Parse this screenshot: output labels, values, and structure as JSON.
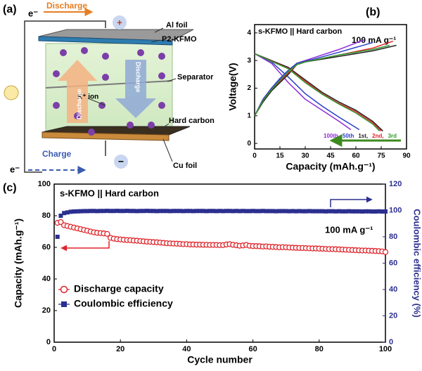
{
  "diagram": {
    "panel": "(a)",
    "electron_top": "e⁻",
    "discharge": "Discharge",
    "plus": "+",
    "al_foil": "Al foil",
    "cathode": "P2-KFMO",
    "separator": "Separator",
    "ion": "K⁺ ion",
    "arrow_up": "Discharge",
    "arrow_down": "Discharge",
    "anode": "Hard carbon",
    "charge": "Charge",
    "minus": "−",
    "cu_foil": "Cu foil",
    "electron_bottom": "e⁻"
  },
  "chart_data": [
    {
      "type": "line",
      "panel": "(b)",
      "title": "s-KFMO || Hard carbon",
      "annotation": "100 mA g⁻¹",
      "x_label": "Capacity (mAh.g⁻¹)",
      "y_label": "Voltage(V)",
      "xlim": [
        0,
        90
      ],
      "xticks": [
        0,
        15,
        30,
        45,
        60,
        75,
        90
      ],
      "ylim": [
        -0.2,
        4.3
      ],
      "yticks": [
        0,
        1,
        2,
        3,
        4
      ],
      "legend": "lower right",
      "series": [
        {
          "name": "100th",
          "color": "#8e2bd6",
          "x": [
            0,
            5,
            10,
            15,
            20,
            25,
            35,
            50,
            65,
            null,
            0,
            10,
            20,
            30,
            40,
            50,
            57
          ],
          "values": [
            1.0,
            1.6,
            2.0,
            2.3,
            2.6,
            2.9,
            3.1,
            3.4,
            3.75,
            null,
            3.25,
            2.9,
            2.2,
            1.6,
            1.2,
            0.8,
            0.5
          ]
        },
        {
          "name": "50th",
          "color": "#2a3fc9",
          "x": [
            0,
            5,
            10,
            15,
            20,
            25,
            35,
            50,
            70,
            null,
            0,
            10,
            20,
            30,
            40,
            50,
            62
          ],
          "values": [
            1.0,
            1.6,
            2.0,
            2.35,
            2.65,
            2.9,
            3.05,
            3.3,
            3.65,
            null,
            3.25,
            2.95,
            2.4,
            1.8,
            1.35,
            0.95,
            0.5
          ]
        },
        {
          "name": "1st,",
          "color": "#222222",
          "x": [
            0,
            5,
            10,
            20,
            25,
            30,
            50,
            70,
            84,
            null,
            0,
            10,
            20,
            30,
            40,
            50,
            60,
            70,
            76
          ],
          "values": [
            1.0,
            1.5,
            1.9,
            2.5,
            2.85,
            2.95,
            3.15,
            3.35,
            3.55,
            null,
            3.25,
            3.0,
            2.75,
            2.3,
            1.85,
            1.5,
            1.2,
            0.8,
            0.45
          ]
        },
        {
          "name": "2nd,",
          "color": "#e0242a",
          "x": [
            0,
            5,
            10,
            20,
            25,
            30,
            50,
            70,
            82,
            null,
            0,
            10,
            20,
            30,
            40,
            50,
            60,
            70,
            75
          ],
          "values": [
            1.0,
            1.55,
            1.95,
            2.55,
            2.85,
            2.95,
            3.2,
            3.45,
            3.7,
            null,
            3.25,
            2.98,
            2.72,
            2.25,
            1.8,
            1.45,
            1.15,
            0.75,
            0.45
          ]
        },
        {
          "name": "3rd",
          "color": "#2f9a2f",
          "x": [
            0,
            5,
            10,
            20,
            25,
            30,
            50,
            70,
            80,
            null,
            0,
            10,
            20,
            30,
            40,
            50,
            60,
            70,
            74
          ],
          "values": [
            1.0,
            1.55,
            1.95,
            2.6,
            2.85,
            2.95,
            3.2,
            3.4,
            3.55,
            null,
            3.25,
            2.97,
            2.7,
            2.2,
            1.78,
            1.42,
            1.1,
            0.7,
            0.45
          ]
        }
      ]
    },
    {
      "type": "scatter",
      "panel": "(c)",
      "title": "s-KFMO || Hard carbon",
      "annotation": "100 mA g⁻¹",
      "x_label": "Cycle number",
      "y_label": "Capacity (mAh.g⁻¹)",
      "y2_label": "Coulombic efficiency (%)",
      "xlim": [
        0,
        100
      ],
      "xticks": [
        0,
        20,
        40,
        60,
        80,
        100
      ],
      "ylim": [
        0,
        100
      ],
      "yticks": [
        0,
        20,
        40,
        60,
        80,
        100
      ],
      "y2lim": [
        0,
        120
      ],
      "y2ticks": [
        0,
        20,
        40,
        60,
        80,
        100,
        120
      ],
      "legend": "lower left",
      "x": [
        1,
        2,
        3,
        4,
        5,
        6,
        7,
        8,
        9,
        10,
        11,
        12,
        13,
        14,
        15,
        16,
        17,
        18,
        19,
        20,
        21,
        22,
        23,
        24,
        25,
        26,
        27,
        28,
        29,
        30,
        31,
        32,
        33,
        34,
        35,
        36,
        37,
        38,
        39,
        40,
        41,
        42,
        43,
        44,
        45,
        46,
        47,
        48,
        49,
        50,
        51,
        52,
        53,
        54,
        55,
        56,
        57,
        58,
        59,
        60,
        61,
        62,
        63,
        64,
        65,
        66,
        67,
        68,
        69,
        70,
        71,
        72,
        73,
        74,
        75,
        76,
        77,
        78,
        79,
        80,
        81,
        82,
        83,
        84,
        85,
        86,
        87,
        88,
        89,
        90,
        91,
        92,
        93,
        94,
        95,
        96,
        97,
        98,
        99,
        100
      ],
      "series": [
        {
          "name": "Discharge capacity",
          "color": "#e0242a",
          "marker": "circle",
          "values": [
            75.5,
            76,
            74,
            73.5,
            73,
            72.5,
            72,
            71.5,
            71,
            70.5,
            70,
            69.5,
            69.2,
            69,
            68.8,
            68.5,
            66,
            65.5,
            65.2,
            65,
            64.8,
            64.6,
            64.5,
            64.3,
            64.2,
            64,
            63.8,
            63.6,
            63.5,
            63.3,
            63.2,
            63,
            62.8,
            62.6,
            62.5,
            62.4,
            62.3,
            62.2,
            62,
            62,
            61.8,
            61.8,
            61.7,
            61.7,
            61.6,
            61.6,
            61.5,
            61.5,
            61.5,
            61.4,
            61.4,
            61.8,
            62,
            61.6,
            61.3,
            61,
            61.2,
            61.5,
            61,
            60.8,
            60.8,
            60.7,
            60.5,
            60.6,
            60.4,
            60.3,
            60.2,
            60,
            60.1,
            60,
            59.9,
            59.8,
            59.7,
            59.6,
            59.6,
            59.5,
            59.4,
            59.3,
            59.3,
            59.2,
            59.1,
            59,
            58.9,
            58.9,
            58.8,
            58.7,
            58.6,
            58.5,
            58.4,
            58.3,
            58.2,
            58.1,
            58,
            58,
            57.9,
            57.8,
            57.7,
            57.6,
            57.4,
            57
          ]
        },
        {
          "name": "Coulombic efficiency",
          "color": "#2b2f8f",
          "marker": "square",
          "axis": "y2",
          "values": [
            80,
            96,
            98,
            98.5,
            99,
            99.2,
            99.3,
            99.4,
            99.5,
            99.5,
            99.6,
            99.6,
            99.5,
            99.6,
            99.6,
            99.7,
            99.6,
            99.6,
            99.7,
            99.6,
            99.6,
            99.7,
            99.6,
            99.6,
            99.5,
            99.6,
            99.6,
            99.7,
            99.6,
            99.6,
            99.5,
            99.6,
            99.6,
            99.6,
            99.5,
            99.6,
            99.6,
            99.6,
            99.5,
            99.6,
            99.6,
            99.5,
            99.6,
            99.6,
            99.6,
            99.5,
            99.6,
            99.6,
            99.5,
            99.6,
            99.5,
            99.6,
            99.6,
            99.5,
            99.6,
            99.5,
            99.6,
            99.5,
            99.5,
            99.6,
            99.5,
            99.5,
            99.6,
            99.5,
            99.5,
            99.5,
            99.4,
            99.5,
            99.5,
            99.5,
            99.4,
            99.5,
            99.4,
            99.5,
            99.4,
            99.4,
            99.5,
            99.4,
            99.4,
            99.4,
            99.4,
            99.3,
            99.4,
            99.4,
            99.3,
            99.4,
            99.3,
            99.3,
            99.4,
            99.3,
            99.3,
            99.3,
            99.2,
            99.3,
            99.3,
            99.2,
            99.2,
            99.3,
            99.2,
            99.2
          ]
        }
      ]
    }
  ]
}
